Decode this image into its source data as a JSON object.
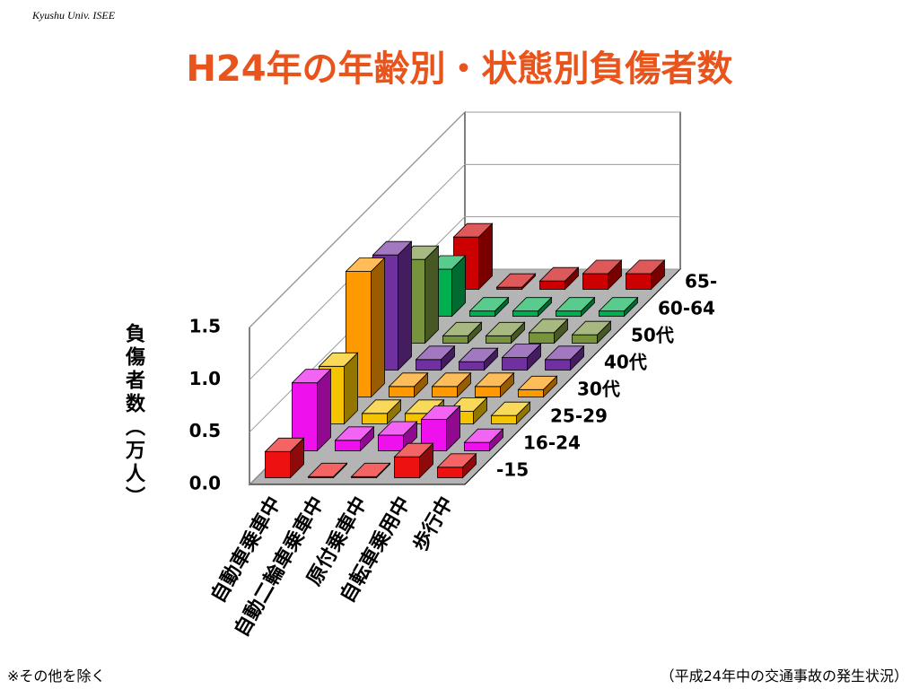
{
  "header": "Kyushu Univ. ISEE",
  "footnote": "※その他を除く",
  "source": "（平成24年中の交通事故の発生状況）",
  "chart_data": {
    "type": "bar3d",
    "title": "H24年の年齢別・状態別負傷者数",
    "y_label": "負傷者数（万人）",
    "categories": [
      "自動車乗車中",
      "自動二輪車乗車中",
      "原付乗車中",
      "自転車乗用中",
      "歩行中"
    ],
    "series": [
      {
        "name": "-15",
        "color": "#ee1111",
        "values": [
          0.25,
          0.01,
          0.01,
          0.2,
          0.1
        ]
      },
      {
        "name": "16-24",
        "color": "#ee11ee",
        "values": [
          0.65,
          0.1,
          0.15,
          0.3,
          0.08
        ]
      },
      {
        "name": "25-29",
        "color": "#f5c400",
        "values": [
          0.55,
          0.1,
          0.1,
          0.12,
          0.08
        ]
      },
      {
        "name": "30代",
        "color": "#ff9900",
        "values": [
          1.2,
          0.1,
          0.1,
          0.1,
          0.07
        ]
      },
      {
        "name": "40代",
        "color": "#7030a0",
        "values": [
          1.1,
          0.1,
          0.08,
          0.12,
          0.1
        ]
      },
      {
        "name": "50代",
        "color": "#77933c",
        "values": [
          0.8,
          0.07,
          0.07,
          0.1,
          0.08
        ]
      },
      {
        "name": "60-64",
        "color": "#00b050",
        "values": [
          0.45,
          0.05,
          0.05,
          0.05,
          0.05
        ]
      },
      {
        "name": "65-",
        "color": "#cc0000",
        "values": [
          0.5,
          0.02,
          0.08,
          0.15,
          0.15
        ]
      }
    ],
    "ylim": [
      0,
      1.5
    ],
    "yticks": [
      {
        "value": 0,
        "label": "0.0"
      },
      0.5,
      {
        "value": 1,
        "label": "1.0"
      },
      1.5
    ],
    "grid": true
  }
}
